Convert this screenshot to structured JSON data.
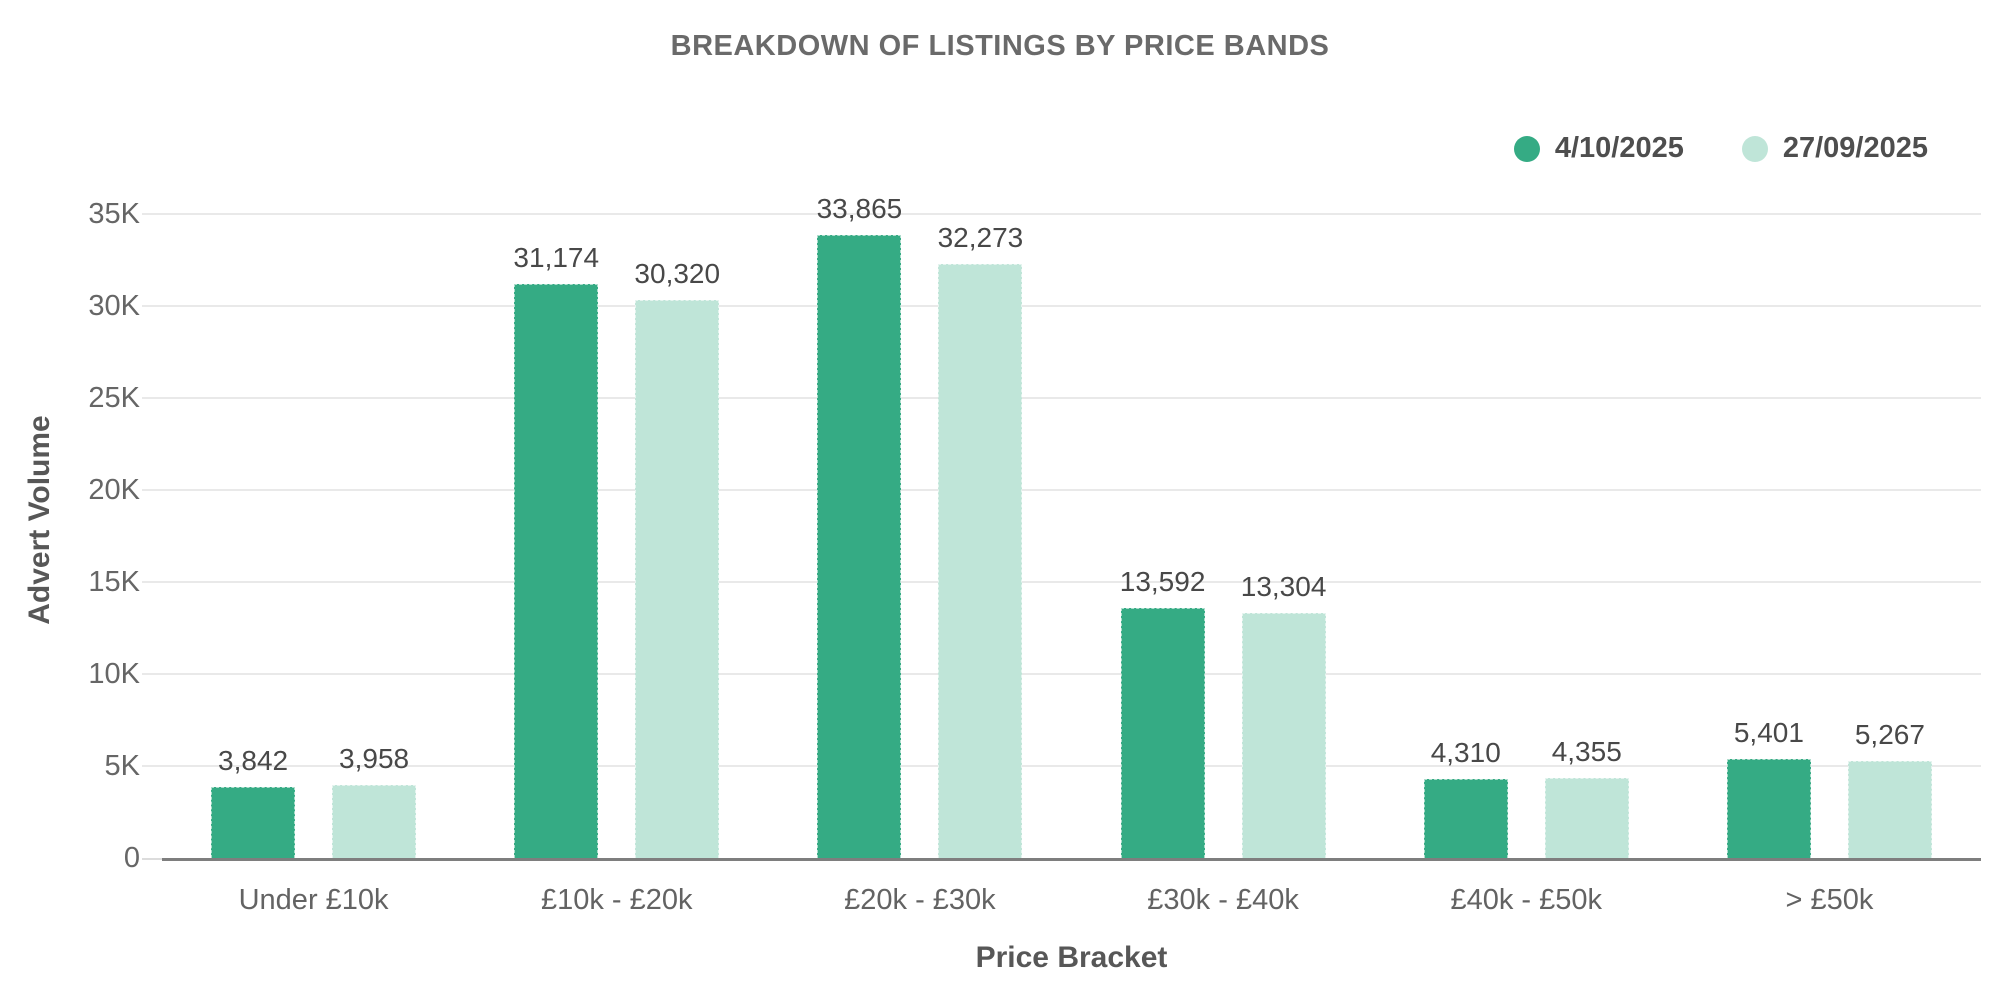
{
  "chart_data": {
    "type": "bar",
    "title": "BREAKDOWN OF LISTINGS BY PRICE BANDS",
    "xlabel": "Price Bracket",
    "ylabel": "Advert Volume",
    "categories": [
      "Under £10k",
      "£10k - £20k",
      "£20k - £30k",
      "£30k - £40k",
      "£40k - £50k",
      "> £50k"
    ],
    "series": [
      {
        "name": "4/10/2025",
        "color": "#35ab84",
        "values": [
          3842,
          31174,
          33865,
          13592,
          4310,
          5401
        ],
        "labels": [
          "3,842",
          "31,174",
          "33,865",
          "13,592",
          "4,310",
          "5,401"
        ]
      },
      {
        "name": "27/09/2025",
        "color": "#bfe5d8",
        "values": [
          3958,
          30320,
          32273,
          13304,
          4355,
          5267
        ],
        "labels": [
          "3,958",
          "30,320",
          "32,273",
          "13,304",
          "4,355",
          "5,267"
        ]
      }
    ],
    "ylim": [
      0,
      35000
    ],
    "yticks": [
      {
        "value": 0,
        "label": "0"
      },
      {
        "value": 5000,
        "label": "5K"
      },
      {
        "value": 10000,
        "label": "10K"
      },
      {
        "value": 15000,
        "label": "15K"
      },
      {
        "value": 20000,
        "label": "20K"
      },
      {
        "value": 25000,
        "label": "25K"
      },
      {
        "value": 30000,
        "label": "30K"
      },
      {
        "value": 35000,
        "label": "35K"
      }
    ],
    "grid": true,
    "legend_position": "top-right",
    "colors": {
      "axis_line": "#7e7e7e",
      "gridline": "#e9e9e9",
      "title_text": "#6a6a6a",
      "tick_text": "#666666",
      "value_label_text": "#484848",
      "background": "#ffffff"
    }
  }
}
